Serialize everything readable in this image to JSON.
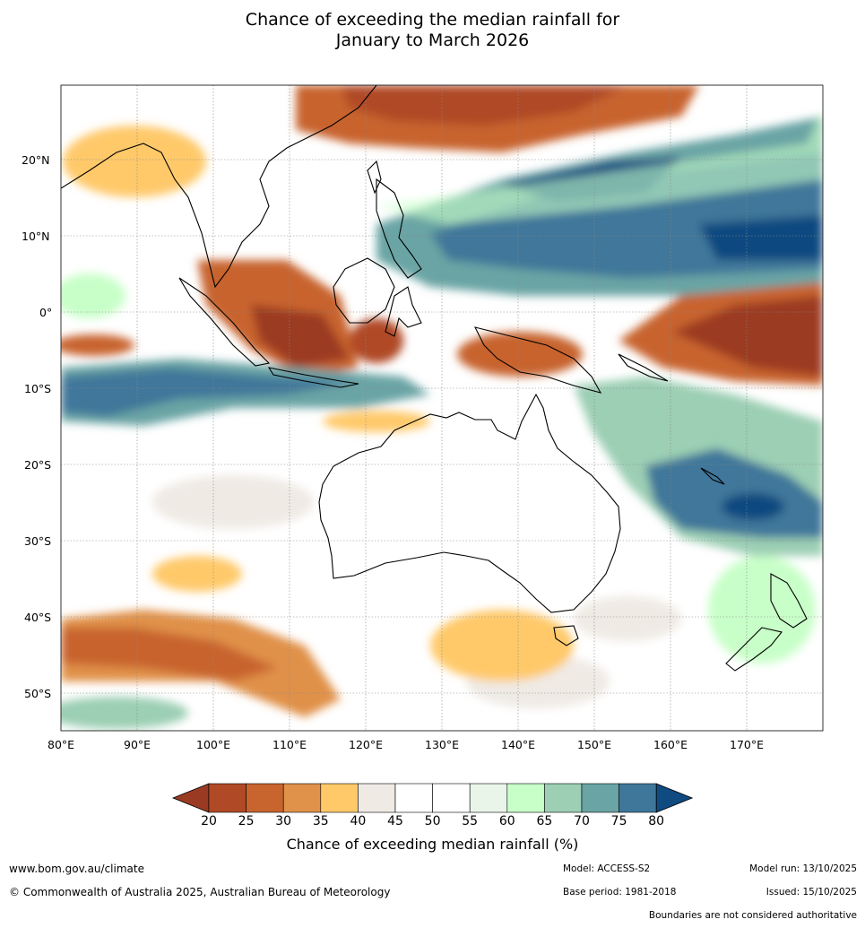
{
  "title_line1": "Chance of exceeding the median rainfall for",
  "title_line2": "January to March 2026",
  "lat_labels": [
    "20°N",
    "10°N",
    "0°",
    "10°S",
    "20°S",
    "30°S",
    "40°S",
    "50°S"
  ],
  "lon_labels": [
    "80°E",
    "90°E",
    "100°E",
    "110°E",
    "120°E",
    "130°E",
    "140°E",
    "150°E",
    "160°E",
    "170°E"
  ],
  "colorbar": {
    "ticks": [
      "20",
      "25",
      "30",
      "35",
      "40",
      "45",
      "50",
      "55",
      "60",
      "65",
      "70",
      "75",
      "80"
    ],
    "colors": [
      "#9b3a22",
      "#b04a26",
      "#c8642e",
      "#e0914a",
      "#ffc96a",
      "#efeae4",
      "#ffffff",
      "#ffffff",
      "#e8f5e8",
      "#c8ffc8",
      "#9ccfb4",
      "#6aa4a4",
      "#3f779a",
      "#0f4a80"
    ],
    "label": "Chance of exceeding median rainfall (%)"
  },
  "footer": {
    "website": "www.bom.gov.au/climate",
    "copyright": "© Commonwealth of Australia 2025, Australian Bureau of Meteorology",
    "model": "Model: ACCESS-S2",
    "base_period": "Base period: 1981-2018",
    "model_run": "Model run: 13/10/2025",
    "issued": "Issued: 15/10/2025",
    "disclaimer": "Boundaries are not considered authoritative"
  }
}
